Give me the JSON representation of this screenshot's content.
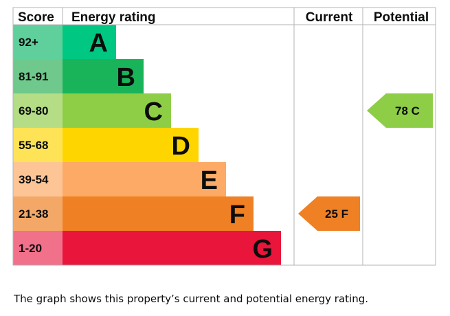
{
  "headers": {
    "score": "Score",
    "rating": "Energy rating",
    "current": "Current",
    "potential": "Potential"
  },
  "chart_data": {
    "type": "bar",
    "bands": [
      {
        "score": "92+",
        "letter": "A",
        "color": "#00c781",
        "score_bg": "#5fcf9c"
      },
      {
        "score": "81-91",
        "letter": "B",
        "color": "#19b459",
        "score_bg": "#6fc88c"
      },
      {
        "score": "69-80",
        "letter": "C",
        "color": "#8dce46",
        "score_bg": "#b4dd86"
      },
      {
        "score": "55-68",
        "letter": "D",
        "color": "#ffd500",
        "score_bg": "#ffe357"
      },
      {
        "score": "39-54",
        "letter": "E",
        "color": "#fcaa65",
        "score_bg": "#fdc595"
      },
      {
        "score": "21-38",
        "letter": "F",
        "color": "#ef8023",
        "score_bg": "#f4a868"
      },
      {
        "score": "1-20",
        "letter": "G",
        "color": "#e9153b",
        "score_bg": "#f1708a"
      }
    ],
    "current": {
      "value": 25,
      "letter": "F",
      "label": "25  F",
      "color": "#ef8023"
    },
    "potential": {
      "value": 78,
      "letter": "C",
      "label": "78  C",
      "color": "#8dce46"
    }
  },
  "caption": "The graph shows this property’s current and potential energy rating."
}
